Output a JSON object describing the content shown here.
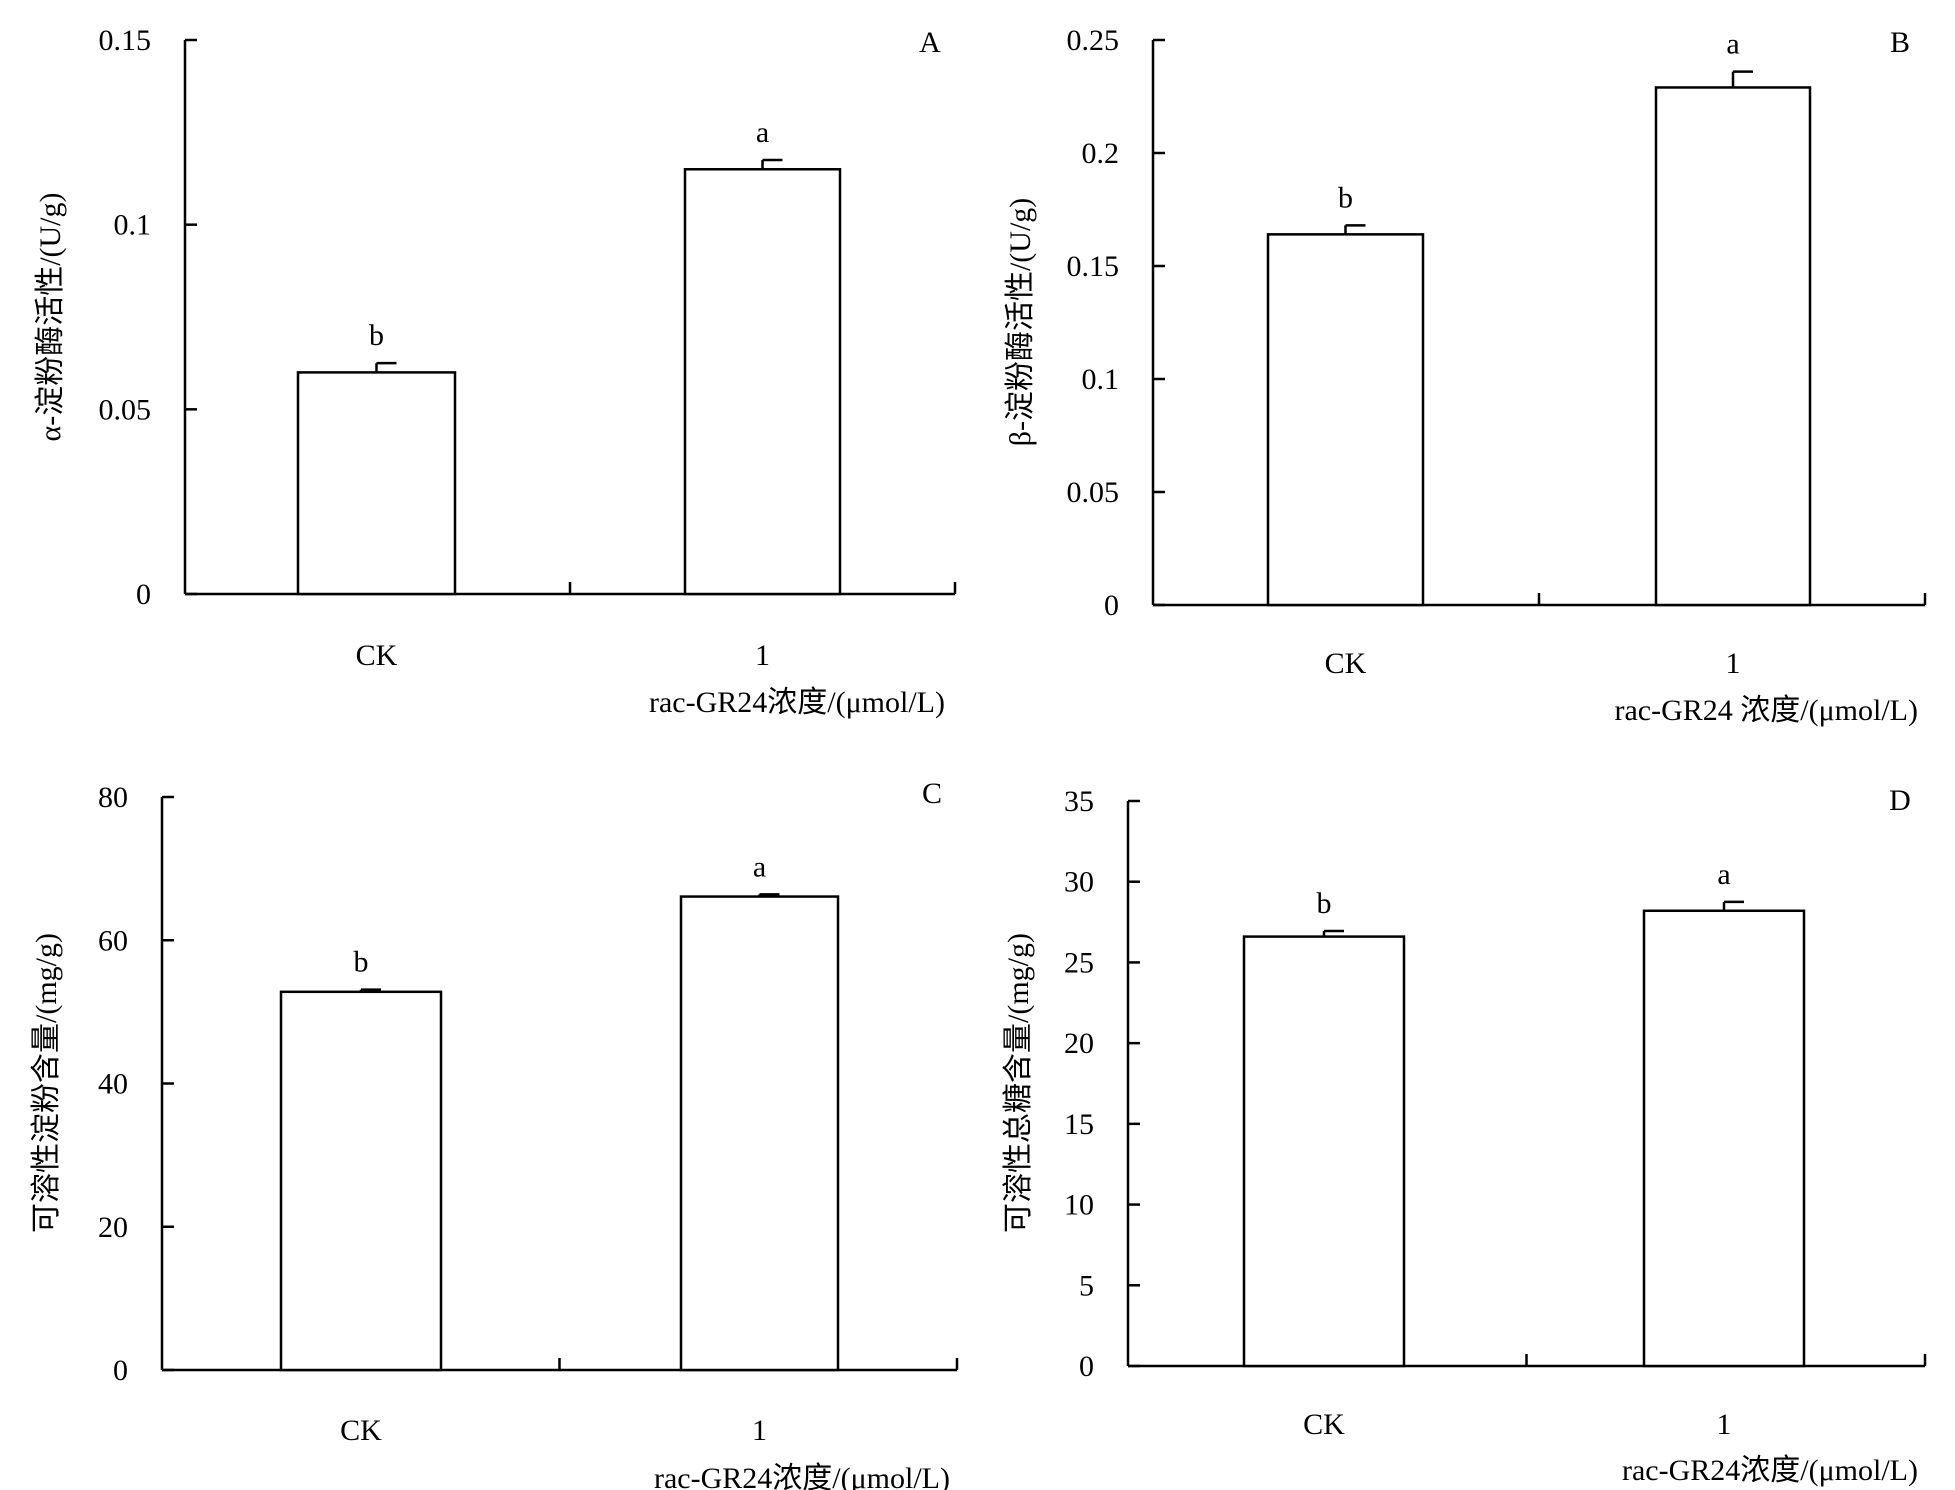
{
  "chart_data": [
    {
      "type": "bar",
      "panel_letter": "A",
      "categories": [
        "CK",
        "1"
      ],
      "values": [
        0.06,
        0.115
      ],
      "errors": [
        0.0025,
        0.0025
      ],
      "significance": [
        "b",
        "a"
      ],
      "ylabel": "α-淀粉酶活性/(U/g)",
      "xlabel": "rac-GR24浓度/(μmol/L)",
      "ylim": [
        0,
        0.15
      ],
      "yticks": [
        "0",
        "0.05",
        "0.1",
        "0.15"
      ],
      "grid": false,
      "legend": "none"
    },
    {
      "type": "bar",
      "panel_letter": "B",
      "categories": [
        "CK",
        "1"
      ],
      "values": [
        0.164,
        0.229
      ],
      "errors": [
        0.004,
        0.007
      ],
      "significance": [
        "b",
        "a"
      ],
      "ylabel": "β-淀粉酶活性/(U/g)",
      "xlabel": "rac-GR24 浓度/(μmol/L)",
      "ylim": [
        0,
        0.25
      ],
      "yticks": [
        "0",
        "0.05",
        "0.1",
        "0.15",
        "0.2",
        "0.25"
      ],
      "grid": false,
      "legend": "none"
    },
    {
      "type": "bar",
      "panel_letter": "C",
      "categories": [
        "CK",
        "1"
      ],
      "values": [
        52.8,
        66.1
      ],
      "errors": [
        0.3,
        0.3
      ],
      "significance": [
        "b",
        "a"
      ],
      "ylabel": "可溶性淀粉含量/(mg/g)",
      "xlabel": "rac-GR24浓度/(μmol/L)",
      "ylim": [
        0,
        80
      ],
      "yticks": [
        "0",
        "20",
        "40",
        "60",
        "80"
      ],
      "grid": false,
      "legend": "none"
    },
    {
      "type": "bar",
      "panel_letter": "D",
      "categories": [
        "CK",
        "1"
      ],
      "values": [
        26.6,
        28.2
      ],
      "errors": [
        0.35,
        0.55
      ],
      "significance": [
        "b",
        "a"
      ],
      "ylabel": "可溶性总糖含量/(mg/g)",
      "xlabel": "rac-GR24浓度/(μmol/L)",
      "ylim": [
        0,
        35
      ],
      "yticks": [
        "0",
        "5",
        "10",
        "15",
        "20",
        "25",
        "30",
        "35"
      ],
      "grid": false,
      "legend": "none"
    }
  ]
}
